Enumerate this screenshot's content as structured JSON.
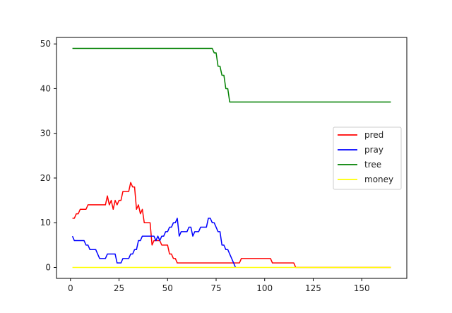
{
  "chart_data": {
    "type": "line",
    "title": "",
    "xlabel": "",
    "ylabel": "",
    "xlim": [
      -7.2,
      173.2
    ],
    "ylim": [
      -2.45,
      51.45
    ],
    "x_ticks": [
      0,
      25,
      50,
      75,
      100,
      125,
      150
    ],
    "y_ticks": [
      0,
      10,
      20,
      30,
      40,
      50
    ],
    "grid": false,
    "legend_position": "center-right",
    "series": [
      {
        "name": "pred",
        "color": "#ff0000",
        "points": [
          [
            1,
            11
          ],
          [
            2,
            11
          ],
          [
            3,
            12
          ],
          [
            4,
            12
          ],
          [
            5,
            13
          ],
          [
            6,
            13
          ],
          [
            7,
            13
          ],
          [
            8,
            13
          ],
          [
            9,
            14
          ],
          [
            10,
            14
          ],
          [
            11,
            14
          ],
          [
            12,
            14
          ],
          [
            13,
            14
          ],
          [
            14,
            14
          ],
          [
            15,
            14
          ],
          [
            16,
            14
          ],
          [
            17,
            14
          ],
          [
            18,
            14
          ],
          [
            19,
            16
          ],
          [
            20,
            14
          ],
          [
            21,
            15
          ],
          [
            22,
            13
          ],
          [
            23,
            15
          ],
          [
            24,
            14
          ],
          [
            25,
            15
          ],
          [
            26,
            15
          ],
          [
            27,
            17
          ],
          [
            28,
            17
          ],
          [
            29,
            17
          ],
          [
            30,
            17
          ],
          [
            31,
            19
          ],
          [
            32,
            18
          ],
          [
            33,
            18
          ],
          [
            34,
            13
          ],
          [
            35,
            14
          ],
          [
            36,
            12
          ],
          [
            37,
            13
          ],
          [
            38,
            10
          ],
          [
            39,
            10
          ],
          [
            40,
            10
          ],
          [
            41,
            10
          ],
          [
            42,
            5
          ],
          [
            43,
            6
          ],
          [
            44,
            6
          ],
          [
            45,
            6
          ],
          [
            46,
            6
          ],
          [
            47,
            5
          ],
          [
            48,
            5
          ],
          [
            49,
            5
          ],
          [
            50,
            5
          ],
          [
            51,
            3
          ],
          [
            52,
            3
          ],
          [
            53,
            2
          ],
          [
            54,
            2
          ],
          [
            55,
            1
          ],
          [
            60,
            1
          ],
          [
            70,
            1
          ],
          [
            80,
            1
          ],
          [
            87,
            1
          ],
          [
            88,
            2
          ],
          [
            95,
            2
          ],
          [
            103,
            2
          ],
          [
            104,
            1
          ],
          [
            110,
            1
          ],
          [
            115,
            1
          ],
          [
            116,
            0
          ],
          [
            130,
            0
          ],
          [
            165,
            0
          ]
        ]
      },
      {
        "name": "pray",
        "color": "#0000ff",
        "points": [
          [
            1,
            7
          ],
          [
            2,
            6
          ],
          [
            3,
            6
          ],
          [
            4,
            6
          ],
          [
            5,
            6
          ],
          [
            6,
            6
          ],
          [
            7,
            6
          ],
          [
            8,
            5
          ],
          [
            9,
            5
          ],
          [
            10,
            4
          ],
          [
            11,
            4
          ],
          [
            12,
            4
          ],
          [
            13,
            4
          ],
          [
            14,
            3
          ],
          [
            15,
            2
          ],
          [
            16,
            2
          ],
          [
            17,
            2
          ],
          [
            18,
            2
          ],
          [
            19,
            3
          ],
          [
            20,
            3
          ],
          [
            21,
            3
          ],
          [
            22,
            3
          ],
          [
            23,
            3
          ],
          [
            24,
            1
          ],
          [
            25,
            1
          ],
          [
            26,
            1
          ],
          [
            27,
            2
          ],
          [
            28,
            2
          ],
          [
            29,
            2
          ],
          [
            30,
            2
          ],
          [
            31,
            3
          ],
          [
            32,
            3
          ],
          [
            33,
            4
          ],
          [
            34,
            4
          ],
          [
            35,
            6
          ],
          [
            36,
            6
          ],
          [
            37,
            7
          ],
          [
            38,
            7
          ],
          [
            39,
            7
          ],
          [
            40,
            7
          ],
          [
            41,
            7
          ],
          [
            42,
            7
          ],
          [
            43,
            7
          ],
          [
            44,
            6
          ],
          [
            45,
            7
          ],
          [
            46,
            6
          ],
          [
            47,
            7
          ],
          [
            48,
            7
          ],
          [
            49,
            8
          ],
          [
            50,
            8
          ],
          [
            51,
            9
          ],
          [
            52,
            9
          ],
          [
            53,
            10
          ],
          [
            54,
            10
          ],
          [
            55,
            11
          ],
          [
            56,
            7
          ],
          [
            57,
            8
          ],
          [
            58,
            8
          ],
          [
            59,
            8
          ],
          [
            60,
            8
          ],
          [
            61,
            9
          ],
          [
            62,
            9
          ],
          [
            63,
            7
          ],
          [
            64,
            8
          ],
          [
            65,
            8
          ],
          [
            66,
            8
          ],
          [
            67,
            9
          ],
          [
            68,
            9
          ],
          [
            69,
            9
          ],
          [
            70,
            9
          ],
          [
            71,
            11
          ],
          [
            72,
            11
          ],
          [
            73,
            10
          ],
          [
            74,
            10
          ],
          [
            75,
            9
          ],
          [
            76,
            8
          ],
          [
            77,
            8
          ],
          [
            78,
            5
          ],
          [
            79,
            5
          ],
          [
            80,
            4
          ],
          [
            81,
            4
          ],
          [
            82,
            3
          ],
          [
            83,
            2
          ],
          [
            84,
            1
          ],
          [
            85,
            0
          ]
        ]
      },
      {
        "name": "tree",
        "color": "#008000",
        "points": [
          [
            1,
            49
          ],
          [
            72,
            49
          ],
          [
            73,
            49
          ],
          [
            74,
            48
          ],
          [
            75,
            48
          ],
          [
            76,
            45
          ],
          [
            77,
            45
          ],
          [
            78,
            43
          ],
          [
            79,
            43
          ],
          [
            80,
            40
          ],
          [
            81,
            40
          ],
          [
            82,
            37
          ],
          [
            100,
            37
          ],
          [
            130,
            37
          ],
          [
            165,
            37
          ]
        ]
      },
      {
        "name": "money",
        "color": "#ffff00",
        "points": [
          [
            1,
            0
          ],
          [
            165,
            0
          ]
        ]
      }
    ]
  }
}
